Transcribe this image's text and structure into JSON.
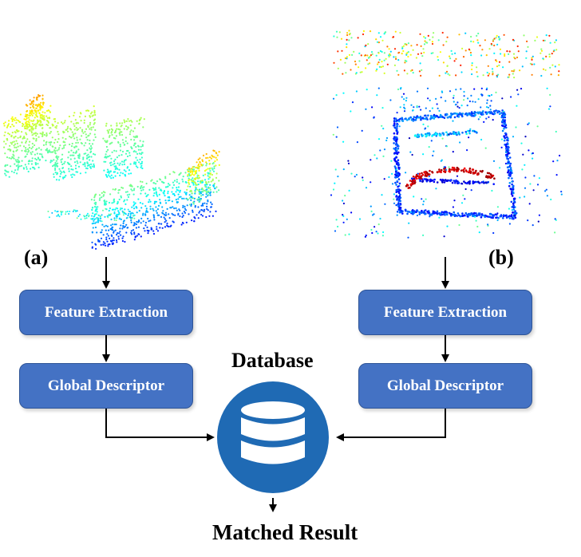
{
  "left_panel": {
    "label": "(a)",
    "steps": [
      "Feature Extraction",
      "Global Descriptor"
    ]
  },
  "right_panel": {
    "label": "(b)",
    "steps": [
      "Feature Extraction",
      "Global Descriptor"
    ]
  },
  "center": {
    "title": "Database",
    "result": "Matched Result"
  },
  "colors": {
    "box_fill": "#4472c4",
    "box_border": "#2f5597",
    "database_circle": "#1f6ab4",
    "arrow": "#000000"
  },
  "icons": [
    "database-icon",
    "point-cloud-scan-a",
    "point-cloud-scan-b"
  ]
}
